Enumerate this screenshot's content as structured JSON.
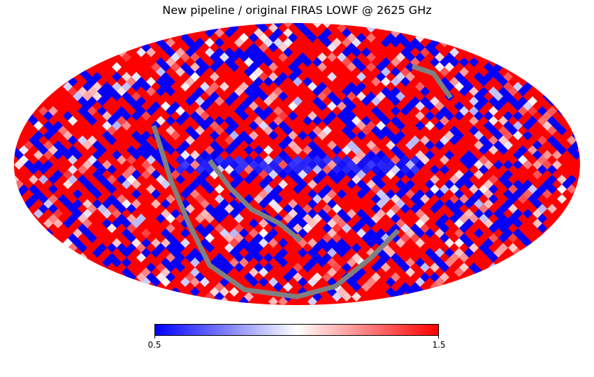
{
  "chart_data": {
    "type": "heatmap",
    "projection": "mollweide",
    "title": "New pipeline / original FIRAS LOWF @ 2625 GHz",
    "colormap": [
      "#0000ff",
      "#ffffff",
      "#ff0000"
    ],
    "bad_value_color": "#808080",
    "colorbar": {
      "orientation": "horizontal",
      "min": 0.5,
      "max": 1.5,
      "min_label": "0.5",
      "max_label": "1.5"
    }
  }
}
